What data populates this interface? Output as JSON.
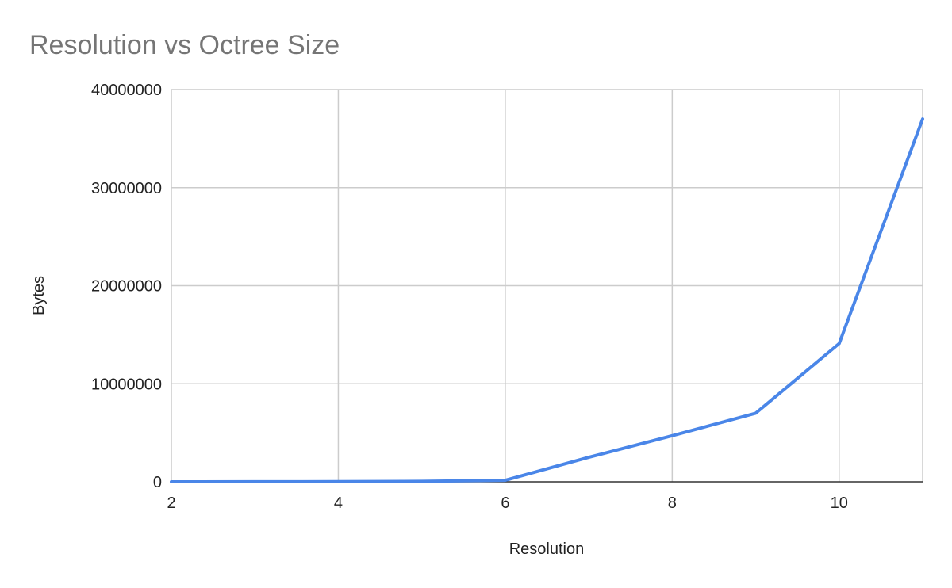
{
  "chart_data": {
    "type": "line",
    "title": "Resolution vs Octree Size",
    "xlabel": "Resolution",
    "ylabel": "Bytes",
    "x_ticks": [
      "2",
      "4",
      "6",
      "8",
      "10"
    ],
    "y_ticks": [
      "0",
      "10000000",
      "20000000",
      "30000000",
      "40000000"
    ],
    "xlim": [
      2,
      11
    ],
    "ylim": [
      0,
      40000000
    ],
    "grid": true,
    "legend": "none",
    "series": [
      {
        "color": "#4a86e8",
        "x": [
          2,
          3,
          4,
          5,
          6,
          7,
          8,
          9,
          10,
          11
        ],
        "y": [
          1000,
          5000,
          20000,
          50000,
          150000,
          2500000,
          4700000,
          7000000,
          14100000,
          37000000
        ]
      }
    ]
  }
}
